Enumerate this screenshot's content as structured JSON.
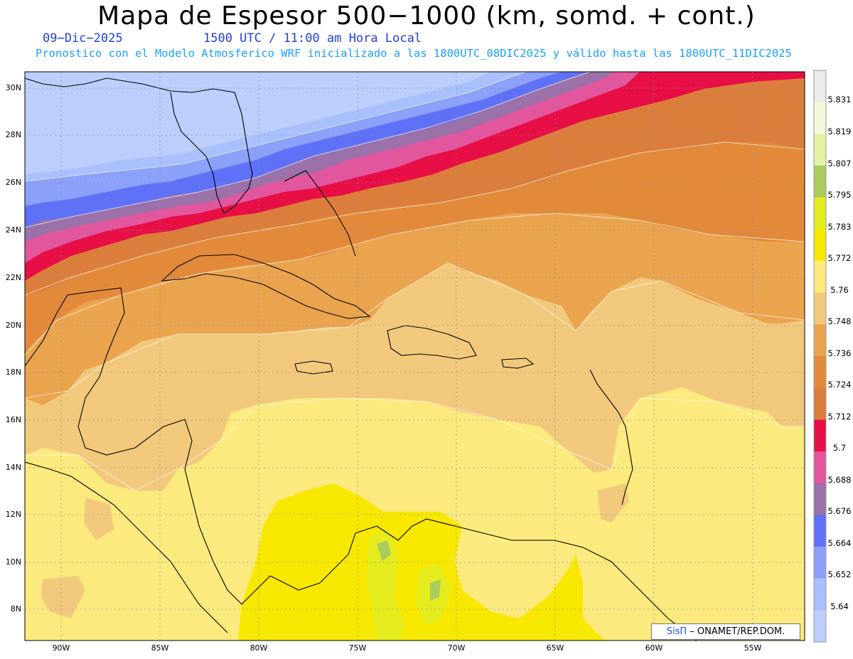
{
  "header": {
    "title": "Mapa de Espesor 500−1000 (km, somd. + cont.)",
    "date": "09−Dic−2025",
    "time": "1500 UTC / 11:00 am Hora Local",
    "forecast": "Pronostico con el Modelo Atmosferico WRF inicializado a las 1800UTC_08DIC2025 y válido hasta las  1800UTC_11DIC2025"
  },
  "map": {
    "lat_labels": [
      "30N",
      "28N",
      "26N",
      "24N",
      "22N",
      "20N",
      "18N",
      "16N",
      "14N",
      "12N",
      "10N",
      "8N"
    ],
    "lon_labels": [
      "90W",
      "85W",
      "80W",
      "75W",
      "70W",
      "65W",
      "60W",
      "55W"
    ]
  },
  "colorbar": {
    "labels": [
      "5.831",
      "5.819",
      "5.807",
      "5.795",
      "5.783",
      "5.772",
      "5.76",
      "5.748",
      "5.736",
      "5.724",
      "5.712",
      "5.7",
      "5.688",
      "5.676",
      "5.664",
      "5.652",
      "5.64"
    ],
    "colors": [
      "#ebebeb",
      "#f4f7da",
      "#e2f3a4",
      "#a9cc5f",
      "#e4ec1e",
      "#f8e800",
      "#fbea7d",
      "#f2c97c",
      "#eaa44e",
      "#e38a3a",
      "#dc7e3b",
      "#e70f45",
      "#e2569e",
      "#9a71a8",
      "#5f71f6",
      "#8da0fa",
      "#aac0fc",
      "#bccefc"
    ]
  },
  "credit": {
    "brand": "SisΠ",
    "org": "– ONAMET/REP.DOM."
  }
}
